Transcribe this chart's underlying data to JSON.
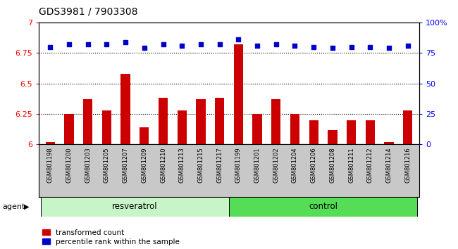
{
  "title": "GDS3981 / 7903308",
  "samples": [
    "GSM801198",
    "GSM801200",
    "GSM801203",
    "GSM801205",
    "GSM801207",
    "GSM801209",
    "GSM801210",
    "GSM801213",
    "GSM801215",
    "GSM801217",
    "GSM801199",
    "GSM801201",
    "GSM801202",
    "GSM801204",
    "GSM801206",
    "GSM801208",
    "GSM801211",
    "GSM801212",
    "GSM801214",
    "GSM801216"
  ],
  "bar_values": [
    6.02,
    6.25,
    6.37,
    6.28,
    6.58,
    6.14,
    6.38,
    6.28,
    6.37,
    6.38,
    6.82,
    6.25,
    6.37,
    6.25,
    6.2,
    6.12,
    6.2,
    6.2,
    6.02,
    6.28
  ],
  "percentile_values": [
    80,
    82,
    82,
    82,
    84,
    79,
    82,
    81,
    82,
    82,
    86,
    81,
    82,
    81,
    80,
    79,
    80,
    80,
    79,
    81
  ],
  "group_labels": [
    "resveratrol",
    "control"
  ],
  "resveratrol_color": "#c8f5c8",
  "control_color": "#55dd55",
  "bar_color": "#CC0000",
  "dot_color": "#0000CC",
  "ylim_left": [
    6.0,
    7.0
  ],
  "ylim_right": [
    0,
    100
  ],
  "yticks_left": [
    6.0,
    6.25,
    6.5,
    6.75,
    7.0
  ],
  "yticks_right": [
    0,
    25,
    50,
    75,
    100
  ],
  "ytick_labels_left": [
    "6",
    "6.25",
    "6.5",
    "6.75",
    "7"
  ],
  "ytick_labels_right": [
    "0",
    "25",
    "50",
    "75",
    "100%"
  ],
  "hlines": [
    6.25,
    6.5,
    6.75
  ],
  "legend_items": [
    "transformed count",
    "percentile rank within the sample"
  ],
  "agent_label": "agent",
  "tick_area_color": "#c8c8c8"
}
